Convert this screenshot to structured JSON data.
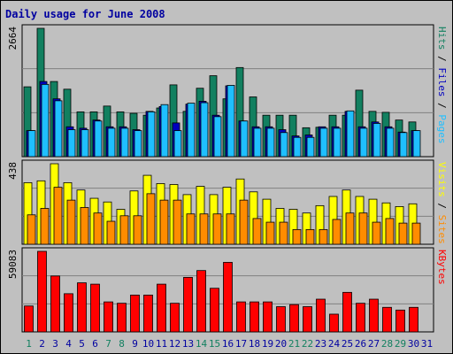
{
  "title": "Daily usage for June 2008",
  "colors": {
    "hits": "#128060",
    "files": "#1fbfff",
    "pages": "#0000c0",
    "visits": "#ffff00",
    "sites": "#ff8c00",
    "kbytes": "#ff0000",
    "weekend": "#128060",
    "weekday": "#0000a0",
    "separator": "#000000",
    "panel_bg": "#c0c0c0"
  },
  "chart_data": {
    "type": "bar",
    "categories": [
      "1",
      "2",
      "3",
      "4",
      "5",
      "6",
      "7",
      "8",
      "9",
      "10",
      "11",
      "12",
      "13",
      "14",
      "15",
      "16",
      "17",
      "18",
      "19",
      "20",
      "21",
      "22",
      "23",
      "24",
      "25",
      "26",
      "27",
      "28",
      "29",
      "30",
      "31"
    ],
    "weekend_days": [
      1,
      7,
      8,
      14,
      15,
      21,
      22,
      28,
      29
    ],
    "panels": [
      {
        "ymax_label": "2664",
        "ylim": [
          0,
          2664
        ],
        "right_labels": [
          {
            "text": "Hits",
            "color": "#128060"
          },
          {
            "text": " / ",
            "color": "#000000"
          },
          {
            "text": "Files",
            "color": "#0000c0"
          },
          {
            "text": " / ",
            "color": "#000000"
          },
          {
            "text": "Pages",
            "color": "#1fbfff"
          }
        ],
        "series": [
          {
            "name": "Hits",
            "color": "#128060",
            "values": [
              1450,
              2664,
              1560,
              1400,
              930,
              930,
              1050,
              930,
              900,
              860,
              1010,
              1490,
              940,
              1420,
              1680,
              1200,
              1850,
              1240,
              860,
              860,
              860,
              600,
              610,
              860,
              860,
              1380,
              940,
              920,
              760,
              720,
              0
            ]
          },
          {
            "name": "Pages",
            "color": "#0000c0",
            "values": [
              540,
              1560,
              1200,
              620,
              590,
              760,
              620,
              620,
              560,
              940,
              1040,
              700,
              1090,
              1150,
              860,
              1470,
              740,
              620,
              620,
              560,
              430,
              450,
              620,
              620,
              940,
              620,
              720,
              620,
              510,
              540,
              0
            ]
          },
          {
            "name": "Files",
            "color": "#1fbfff",
            "values": [
              540,
              1500,
              1160,
              560,
              560,
              740,
              590,
              590,
              540,
              930,
              1080,
              540,
              1110,
              1120,
              830,
              1480,
              740,
              590,
              590,
              500,
              400,
              400,
              590,
              590,
              950,
              590,
              690,
              590,
              500,
              540,
              0
            ]
          }
        ]
      },
      {
        "ymax_label": "438",
        "ylim": [
          0,
          438
        ],
        "right_labels": [
          {
            "text": "Visits",
            "color": "#ffff00"
          },
          {
            "text": " / ",
            "color": "#000000"
          },
          {
            "text": "Sites",
            "color": "#ff8c00"
          }
        ],
        "series": [
          {
            "name": "Visits",
            "color": "#ffff00",
            "values": [
              335,
              345,
              438,
              335,
              295,
              250,
              230,
              190,
              290,
              375,
              330,
              325,
              270,
              315,
              270,
              310,
              355,
              285,
              245,
              195,
              190,
              170,
              210,
              260,
              295,
              260,
              245,
              225,
              205,
              220,
              0
            ]
          },
          {
            "name": "Sites",
            "color": "#ff8c00",
            "values": [
              160,
              195,
              310,
              240,
              200,
              170,
              125,
              155,
              155,
              275,
              240,
              240,
              165,
              165,
              165,
              165,
              240,
              140,
              120,
              120,
              80,
              80,
              80,
              135,
              170,
              170,
              120,
              140,
              115,
              115,
              0
            ]
          }
        ]
      },
      {
        "ymax_label": "59083",
        "ylim": [
          0,
          59083
        ],
        "right_labels": [
          {
            "text": "KBytes",
            "color": "#ff0000"
          }
        ],
        "series": [
          {
            "name": "KBytes",
            "color": "#ff0000",
            "values": [
              19000,
              59083,
              41000,
              28000,
              36000,
              35000,
              22000,
              21000,
              27000,
              27000,
              35000,
              21000,
              40000,
              45000,
              32000,
              51000,
              22000,
              22000,
              22000,
              18500,
              20000,
              18500,
              24000,
              13000,
              29000,
              21000,
              24000,
              18000,
              16000,
              18000,
              0
            ]
          }
        ]
      }
    ]
  }
}
